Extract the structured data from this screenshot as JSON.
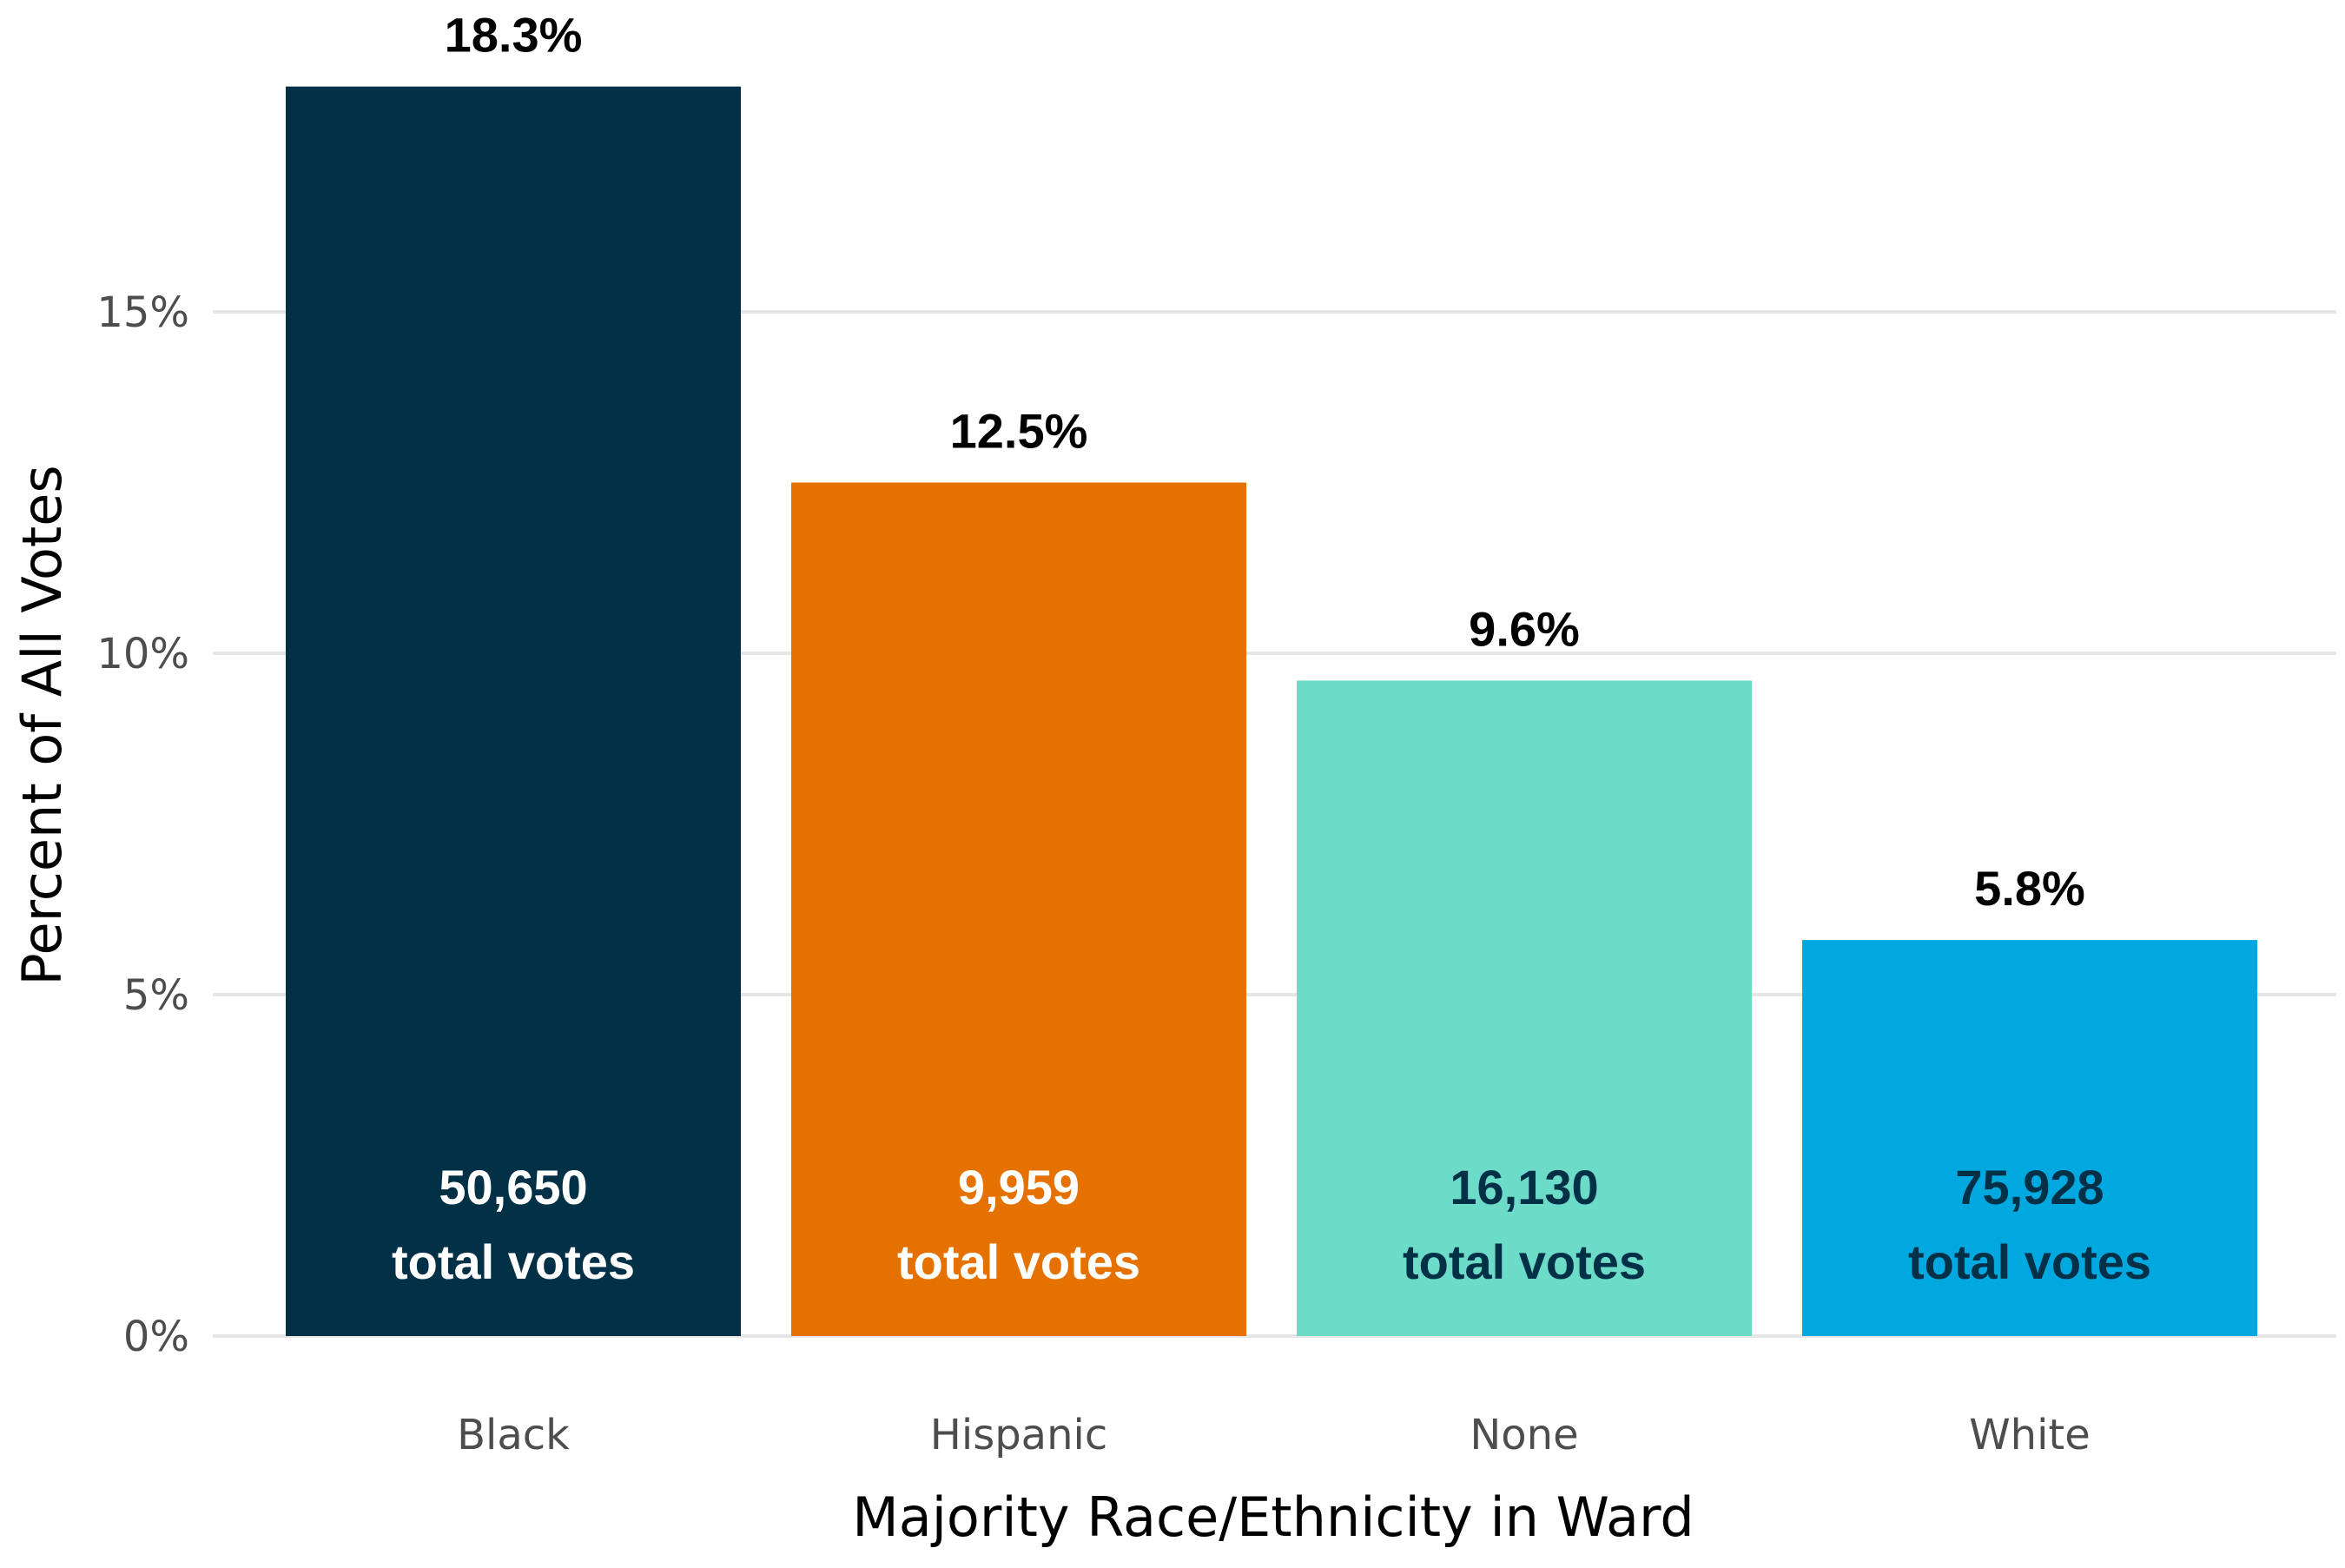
{
  "chart_data": {
    "type": "bar",
    "title": "",
    "xlabel": "Majority Race/Ethnicity in Ward",
    "ylabel": "Percent of All Votes",
    "categories": [
      "Black",
      "Hispanic",
      "None",
      "White"
    ],
    "values": [
      18.3,
      12.5,
      9.6,
      5.8
    ],
    "value_labels": [
      "18.3%",
      "12.5%",
      "9.6%",
      "5.8%"
    ],
    "total_votes": [
      "50,650",
      "9,959",
      "16,130",
      "75,928"
    ],
    "total_votes_suffix": "total votes",
    "bar_colors": [
      "#023047",
      "#E57200",
      "#6CDBC7",
      "#00A8E0"
    ],
    "inner_label_colors": [
      "#ffffff",
      "#ffffff",
      "#023047",
      "#023047"
    ],
    "y_ticks": [
      0,
      5,
      10,
      15
    ],
    "y_tick_labels": [
      "0%",
      "5%",
      "10%",
      "15%"
    ],
    "ylim": [
      0,
      19
    ],
    "grid": true,
    "legend": "none"
  }
}
